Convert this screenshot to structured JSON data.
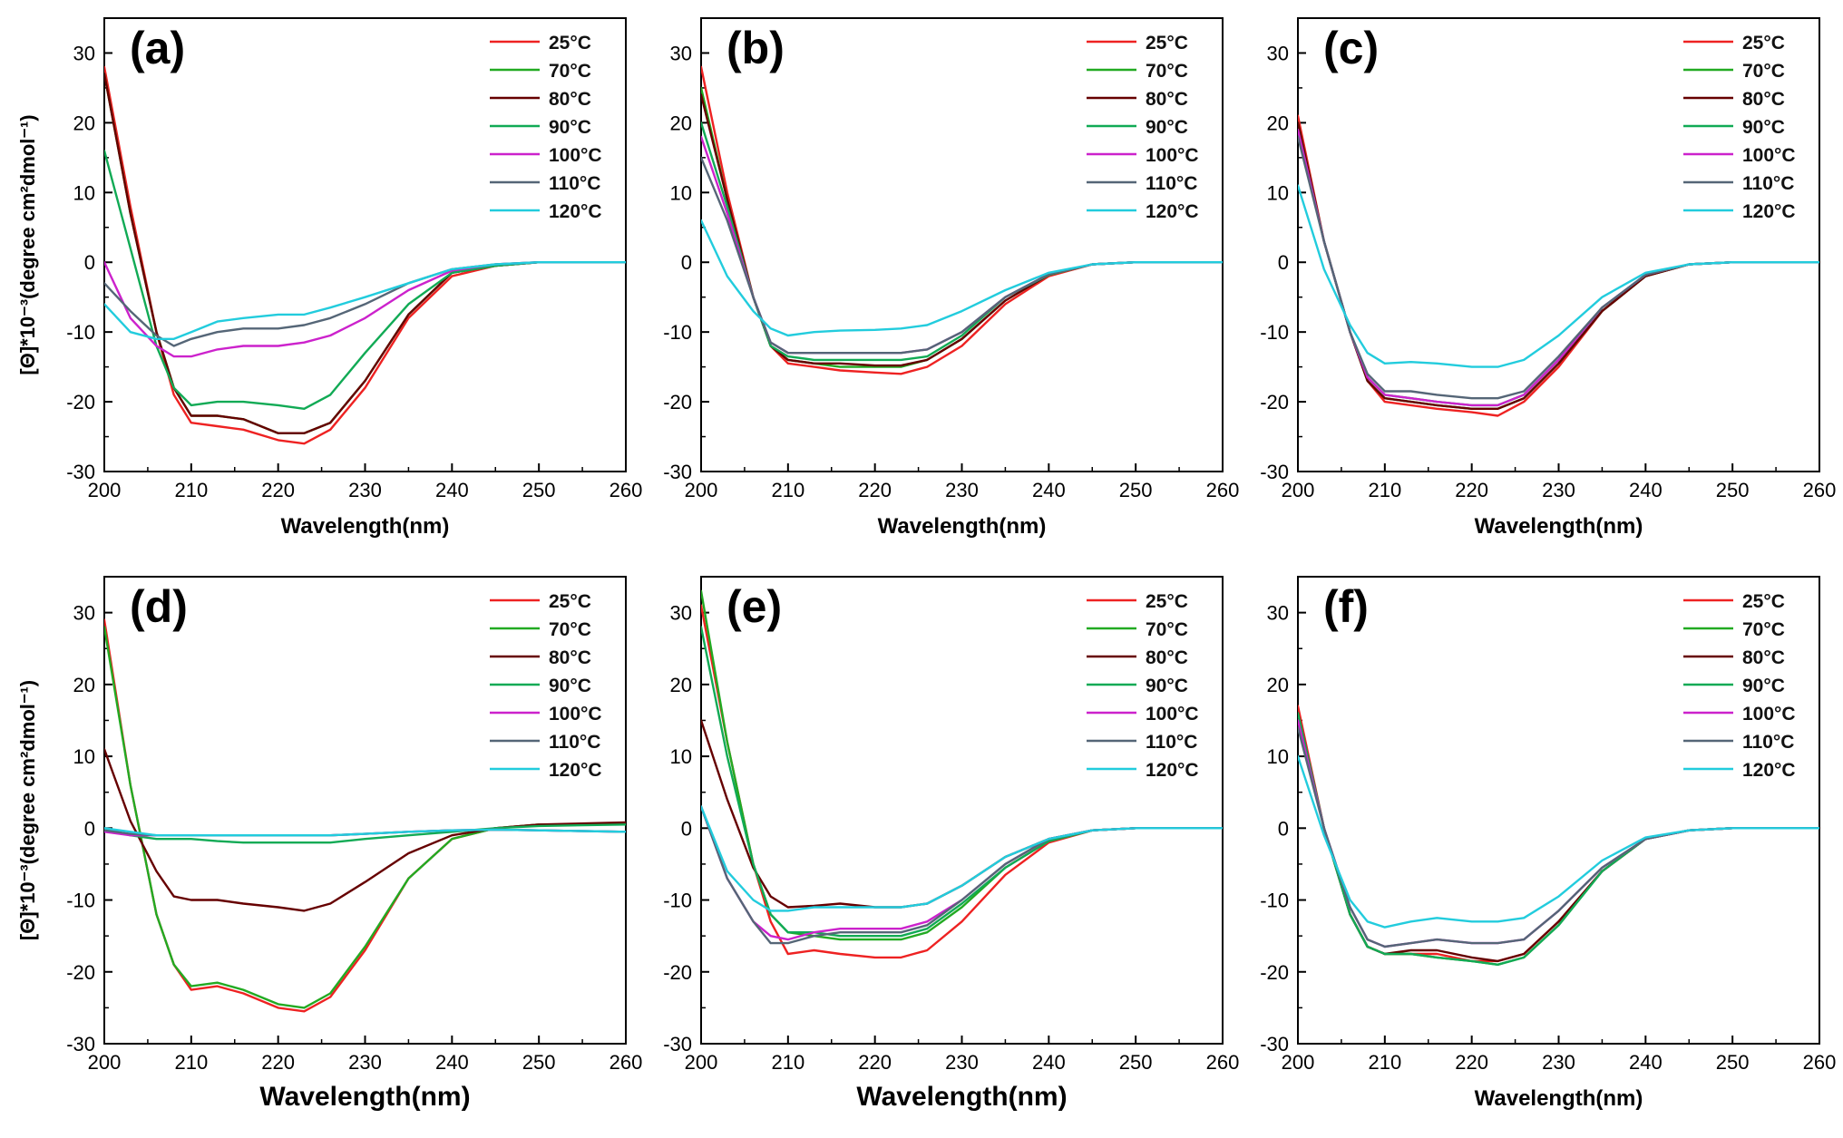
{
  "colors": {
    "25°C": "#ee2222",
    "70°C": "#22aa22",
    "80°C": "#660000",
    "90°C": "#11aa55",
    "100°C": "#cc22cc",
    "110°C": "#556677",
    "120°C": "#22ccdd"
  },
  "chart_data": [
    {
      "type": "line",
      "panel": "(a)",
      "xlabel": "Wavelength(nm)",
      "ylabel": "[Θ]*10⁻³(degree cm²dmol⁻¹)",
      "xlim": [
        200,
        260
      ],
      "ylim": [
        -30,
        35
      ],
      "xticks": [
        "200",
        "210",
        "220",
        "230",
        "240",
        "250",
        "260"
      ],
      "yticks": [
        "30",
        "20",
        "10",
        "0",
        "-10",
        "-20",
        "-30"
      ],
      "legend_position": "top-right",
      "x": [
        200,
        203,
        206,
        208,
        210,
        213,
        216,
        220,
        223,
        226,
        230,
        235,
        240,
        245,
        250,
        260
      ],
      "series": [
        {
          "name": "25°C",
          "values": [
            28,
            8,
            -10,
            -19,
            -23,
            -23.5,
            -24,
            -25.5,
            -26,
            -24,
            -18,
            -8,
            -2,
            -0.5,
            0,
            0
          ]
        },
        {
          "name": "70°C",
          "values": [
            27,
            7,
            -10,
            -18,
            -22,
            -22,
            -22.5,
            -24.5,
            -24.5,
            -23,
            -17,
            -7.5,
            -1.5,
            -0.5,
            0,
            0
          ]
        },
        {
          "name": "80°C",
          "values": [
            27,
            7,
            -10,
            -18,
            -22,
            -22,
            -22.5,
            -24.5,
            -24.5,
            -23,
            -17,
            -7.5,
            -1.5,
            -0.5,
            0,
            0
          ]
        },
        {
          "name": "90°C",
          "values": [
            16,
            2,
            -12,
            -18,
            -20.5,
            -20,
            -20,
            -20.5,
            -21,
            -19,
            -13,
            -6,
            -1.5,
            -0.5,
            0,
            0
          ]
        },
        {
          "name": "100°C",
          "values": [
            0,
            -8,
            -12,
            -13.5,
            -13.5,
            -12.5,
            -12,
            -12,
            -11.5,
            -10.5,
            -8,
            -4,
            -1.2,
            -0.3,
            0,
            0
          ]
        },
        {
          "name": "110°C",
          "values": [
            -3,
            -7,
            -10.5,
            -12,
            -11,
            -10,
            -9.5,
            -9.5,
            -9,
            -8,
            -6,
            -3,
            -1,
            -0.3,
            0,
            0
          ]
        },
        {
          "name": "120°C",
          "values": [
            -6,
            -10,
            -11,
            -11,
            -10,
            -8.5,
            -8,
            -7.5,
            -7.5,
            -6.5,
            -5,
            -3,
            -1,
            -0.3,
            0,
            0
          ]
        }
      ]
    },
    {
      "type": "line",
      "panel": "(b)",
      "xlabel": "Wavelength(nm)",
      "ylabel": "",
      "xlim": [
        200,
        260
      ],
      "ylim": [
        -30,
        35
      ],
      "xticks": [
        "200",
        "210",
        "220",
        "230",
        "240",
        "250",
        "260"
      ],
      "yticks": [
        "30",
        "20",
        "10",
        "0",
        "-10",
        "-20",
        "-30"
      ],
      "legend_position": "top-right",
      "x": [
        200,
        203,
        206,
        208,
        210,
        213,
        216,
        220,
        223,
        226,
        230,
        235,
        240,
        245,
        250,
        260
      ],
      "series": [
        {
          "name": "25°C",
          "values": [
            28,
            10,
            -5,
            -12,
            -14.5,
            -15,
            -15.5,
            -15.8,
            -16,
            -15,
            -12,
            -6,
            -2,
            -0.3,
            0,
            0
          ]
        },
        {
          "name": "70°C",
          "values": [
            25,
            9,
            -5,
            -12,
            -14,
            -14.5,
            -15,
            -15,
            -15,
            -14,
            -11,
            -5.5,
            -1.8,
            -0.3,
            0,
            0
          ]
        },
        {
          "name": "80°C",
          "values": [
            24,
            9,
            -5,
            -12,
            -14,
            -14.5,
            -14.5,
            -14.8,
            -14.8,
            -14,
            -11,
            -5.5,
            -1.8,
            -0.3,
            0,
            0
          ]
        },
        {
          "name": "90°C",
          "values": [
            20,
            8,
            -5,
            -12,
            -13.5,
            -14,
            -14,
            -14,
            -14,
            -13.5,
            -10.5,
            -5,
            -1.8,
            -0.3,
            0,
            0
          ]
        },
        {
          "name": "100°C",
          "values": [
            18,
            7,
            -5,
            -11.5,
            -13,
            -13,
            -13,
            -13,
            -13,
            -12.5,
            -10,
            -5,
            -1.7,
            -0.3,
            0,
            0
          ]
        },
        {
          "name": "110°C",
          "values": [
            15,
            6,
            -5,
            -11.5,
            -13,
            -13,
            -13,
            -13,
            -13,
            -12.5,
            -10,
            -5,
            -1.7,
            -0.3,
            0,
            0
          ]
        },
        {
          "name": "120°C",
          "values": [
            6,
            -2,
            -7,
            -9.5,
            -10.5,
            -10,
            -9.8,
            -9.7,
            -9.5,
            -9,
            -7,
            -4,
            -1.5,
            -0.3,
            0,
            0
          ]
        }
      ]
    },
    {
      "type": "line",
      "panel": "(c)",
      "xlabel": "Wavelength(nm)",
      "ylabel": "",
      "xlim": [
        200,
        260
      ],
      "ylim": [
        -30,
        35
      ],
      "xticks": [
        "200",
        "210",
        "220",
        "230",
        "240",
        "250",
        "260"
      ],
      "yticks": [
        "30",
        "20",
        "10",
        "0",
        "-10",
        "-20",
        "-30"
      ],
      "legend_position": "top-right",
      "x": [
        200,
        203,
        206,
        208,
        210,
        213,
        216,
        220,
        223,
        226,
        230,
        235,
        240,
        245,
        250,
        260
      ],
      "series": [
        {
          "name": "25°C",
          "values": [
            21,
            3,
            -10,
            -17,
            -20,
            -20.5,
            -21,
            -21.5,
            -22,
            -20,
            -15,
            -7,
            -2,
            -0.3,
            0,
            0
          ]
        },
        {
          "name": "70°C",
          "values": [
            20,
            3,
            -10,
            -17,
            -19.5,
            -20,
            -20.5,
            -21,
            -21,
            -19.5,
            -14.5,
            -7,
            -2,
            -0.3,
            0,
            0
          ]
        },
        {
          "name": "80°C",
          "values": [
            20,
            3,
            -10,
            -17,
            -19.5,
            -20,
            -20.5,
            -21,
            -21,
            -19.5,
            -14.5,
            -7,
            -2,
            -0.3,
            0,
            0
          ]
        },
        {
          "name": "90°C",
          "values": [
            19,
            3,
            -10,
            -16.5,
            -19,
            -19.5,
            -20,
            -20.5,
            -20.5,
            -19,
            -14,
            -6.5,
            -1.8,
            -0.3,
            0,
            0
          ]
        },
        {
          "name": "100°C",
          "values": [
            19,
            3,
            -10,
            -16.5,
            -19,
            -19.5,
            -20,
            -20.5,
            -20.5,
            -19,
            -14,
            -6.5,
            -1.8,
            -0.3,
            0,
            0
          ]
        },
        {
          "name": "110°C",
          "values": [
            18,
            3,
            -10,
            -16,
            -18.5,
            -18.5,
            -19,
            -19.5,
            -19.5,
            -18.5,
            -13.5,
            -6.5,
            -1.8,
            -0.3,
            0,
            0
          ]
        },
        {
          "name": "120°C",
          "values": [
            11,
            -1,
            -9,
            -13,
            -14.5,
            -14.3,
            -14.5,
            -15,
            -15,
            -14,
            -10.5,
            -5,
            -1.5,
            -0.3,
            0,
            0
          ]
        }
      ]
    },
    {
      "type": "line",
      "panel": "(d)",
      "xlabel": "Wavelength(nm)",
      "ylabel": "[Θ]*10⁻³(degree cm²dmol⁻¹)",
      "xlim": [
        200,
        260
      ],
      "ylim": [
        -30,
        35
      ],
      "xticks": [
        "200",
        "210",
        "220",
        "230",
        "240",
        "250",
        "260"
      ],
      "yticks": [
        "30",
        "20",
        "10",
        "0",
        "-10",
        "-20",
        "-30"
      ],
      "legend_position": "top-right",
      "x": [
        200,
        203,
        206,
        208,
        210,
        213,
        216,
        220,
        223,
        226,
        230,
        235,
        240,
        245,
        250,
        260
      ],
      "series": [
        {
          "name": "25°C",
          "values": [
            29,
            6,
            -12,
            -19,
            -22.5,
            -22,
            -23,
            -25,
            -25.5,
            -23.5,
            -17,
            -7,
            -1.5,
            0,
            0.5,
            0.5
          ]
        },
        {
          "name": "70°C",
          "values": [
            28,
            6,
            -12,
            -19,
            -22,
            -21.5,
            -22.5,
            -24.5,
            -25,
            -23,
            -16.5,
            -7,
            -1.5,
            0,
            0.5,
            0.5
          ]
        },
        {
          "name": "80°C",
          "values": [
            11,
            1,
            -6,
            -9.5,
            -10,
            -10,
            -10.5,
            -11,
            -11.5,
            -10.5,
            -7.5,
            -3.5,
            -1,
            0,
            0.5,
            0.8
          ]
        },
        {
          "name": "90°C",
          "values": [
            0,
            -1,
            -1.5,
            -1.5,
            -1.5,
            -1.8,
            -2,
            -2,
            -2,
            -2,
            -1.5,
            -1,
            -0.5,
            0,
            0.3,
            0.5
          ]
        },
        {
          "name": "100°C",
          "values": [
            -0.5,
            -1,
            -1,
            -1,
            -1,
            -1,
            -1,
            -1,
            -1,
            -1,
            -0.8,
            -0.5,
            -0.3,
            -0.2,
            -0.3,
            -0.5
          ]
        },
        {
          "name": "110°C",
          "values": [
            -0.3,
            -0.8,
            -1,
            -1,
            -1,
            -1,
            -1,
            -1,
            -1,
            -1,
            -0.8,
            -0.5,
            -0.3,
            -0.2,
            -0.3,
            -0.5
          ]
        },
        {
          "name": "120°C",
          "values": [
            0,
            -0.5,
            -1,
            -1,
            -1,
            -1,
            -1,
            -1,
            -1,
            -1,
            -0.8,
            -0.5,
            -0.3,
            -0.2,
            -0.3,
            -0.5
          ]
        }
      ]
    },
    {
      "type": "line",
      "panel": "(e)",
      "xlabel": "Wavelength(nm)",
      "ylabel": "",
      "xlim": [
        200,
        260
      ],
      "ylim": [
        -30,
        35
      ],
      "xticks": [
        "200",
        "210",
        "220",
        "230",
        "240",
        "250",
        "260"
      ],
      "yticks": [
        "30",
        "20",
        "10",
        "0",
        "-10",
        "-20",
        "-30"
      ],
      "legend_position": "top-right",
      "x": [
        200,
        203,
        206,
        208,
        210,
        213,
        216,
        220,
        223,
        226,
        230,
        235,
        240,
        245,
        250,
        260
      ],
      "series": [
        {
          "name": "25°C",
          "values": [
            31,
            12,
            -5,
            -13,
            -17.5,
            -17,
            -17.5,
            -18,
            -18,
            -17,
            -13,
            -6.5,
            -2,
            -0.3,
            0,
            0
          ]
        },
        {
          "name": "70°C",
          "values": [
            33,
            12,
            -5,
            -12,
            -14.5,
            -15,
            -15.5,
            -15.5,
            -15.5,
            -14.5,
            -11,
            -5.5,
            -1.8,
            -0.3,
            0,
            0
          ]
        },
        {
          "name": "80°C",
          "values": [
            15,
            4,
            -5.5,
            -9.5,
            -11,
            -10.8,
            -10.5,
            -11,
            -11,
            -10.5,
            -8,
            -4,
            -1.5,
            -0.3,
            0,
            0
          ]
        },
        {
          "name": "90°C",
          "values": [
            28,
            10,
            -5,
            -12,
            -14.5,
            -14.5,
            -15,
            -15,
            -15,
            -14,
            -10.5,
            -5.5,
            -1.8,
            -0.3,
            0,
            0
          ]
        },
        {
          "name": "100°C",
          "values": [
            3,
            -7,
            -13,
            -15,
            -15.5,
            -14.5,
            -14,
            -14,
            -14,
            -13,
            -10,
            -5,
            -1.5,
            -0.3,
            0,
            0
          ]
        },
        {
          "name": "110°C",
          "values": [
            3,
            -7,
            -13,
            -16,
            -16,
            -15,
            -14.5,
            -14.5,
            -14.5,
            -13.5,
            -10,
            -5,
            -1.5,
            -0.3,
            0,
            0
          ]
        },
        {
          "name": "120°C",
          "values": [
            3,
            -6,
            -10,
            -11.5,
            -11.5,
            -11,
            -11,
            -11,
            -11,
            -10.5,
            -8,
            -4,
            -1.5,
            -0.3,
            0,
            0
          ]
        }
      ]
    },
    {
      "type": "line",
      "panel": "(f)",
      "xlabel": "Wavelength(nm)",
      "ylabel": "",
      "xlim": [
        200,
        260
      ],
      "ylim": [
        -30,
        35
      ],
      "xticks": [
        "200",
        "210",
        "220",
        "230",
        "240",
        "250",
        "260"
      ],
      "yticks": [
        "30",
        "20",
        "10",
        "0",
        "-10",
        "-20",
        "-30"
      ],
      "legend_position": "top-right",
      "x": [
        200,
        203,
        206,
        208,
        210,
        213,
        216,
        220,
        223,
        226,
        230,
        235,
        240,
        245,
        250,
        260
      ],
      "series": [
        {
          "name": "25°C",
          "values": [
            17,
            0,
            -12,
            -16.5,
            -17.5,
            -17.5,
            -17.5,
            -18.5,
            -18.5,
            -17.5,
            -13,
            -6,
            -1.5,
            -0.3,
            0,
            0
          ]
        },
        {
          "name": "70°C",
          "values": [
            16,
            0,
            -12,
            -16.5,
            -17.5,
            -17.5,
            -18,
            -18.5,
            -19,
            -18,
            -13.5,
            -6,
            -1.5,
            -0.3,
            0,
            0
          ]
        },
        {
          "name": "80°C",
          "values": [
            16,
            0,
            -12,
            -16.5,
            -17.5,
            -17,
            -17,
            -18,
            -18.5,
            -17.5,
            -13,
            -6,
            -1.5,
            -0.3,
            0,
            0
          ]
        },
        {
          "name": "90°C",
          "values": [
            16,
            0,
            -12,
            -16.5,
            -17.5,
            -17.5,
            -18,
            -18.5,
            -19,
            -18,
            -13.5,
            -6,
            -1.5,
            -0.3,
            0,
            0
          ]
        },
        {
          "name": "100°C",
          "values": [
            15,
            0,
            -11,
            -15.5,
            -16.5,
            -16,
            -15.5,
            -16,
            -16,
            -15.5,
            -11.5,
            -5.5,
            -1.5,
            -0.3,
            0,
            0
          ]
        },
        {
          "name": "110°C",
          "values": [
            14,
            0,
            -11,
            -15.5,
            -16.5,
            -16,
            -15.5,
            -16,
            -16,
            -15.5,
            -11.5,
            -5.5,
            -1.5,
            -0.3,
            0,
            0
          ]
        },
        {
          "name": "120°C",
          "values": [
            10,
            -1,
            -10,
            -13,
            -13.8,
            -13,
            -12.5,
            -13,
            -13,
            -12.5,
            -9.5,
            -4.5,
            -1.3,
            -0.3,
            0,
            0
          ]
        }
      ]
    }
  ]
}
